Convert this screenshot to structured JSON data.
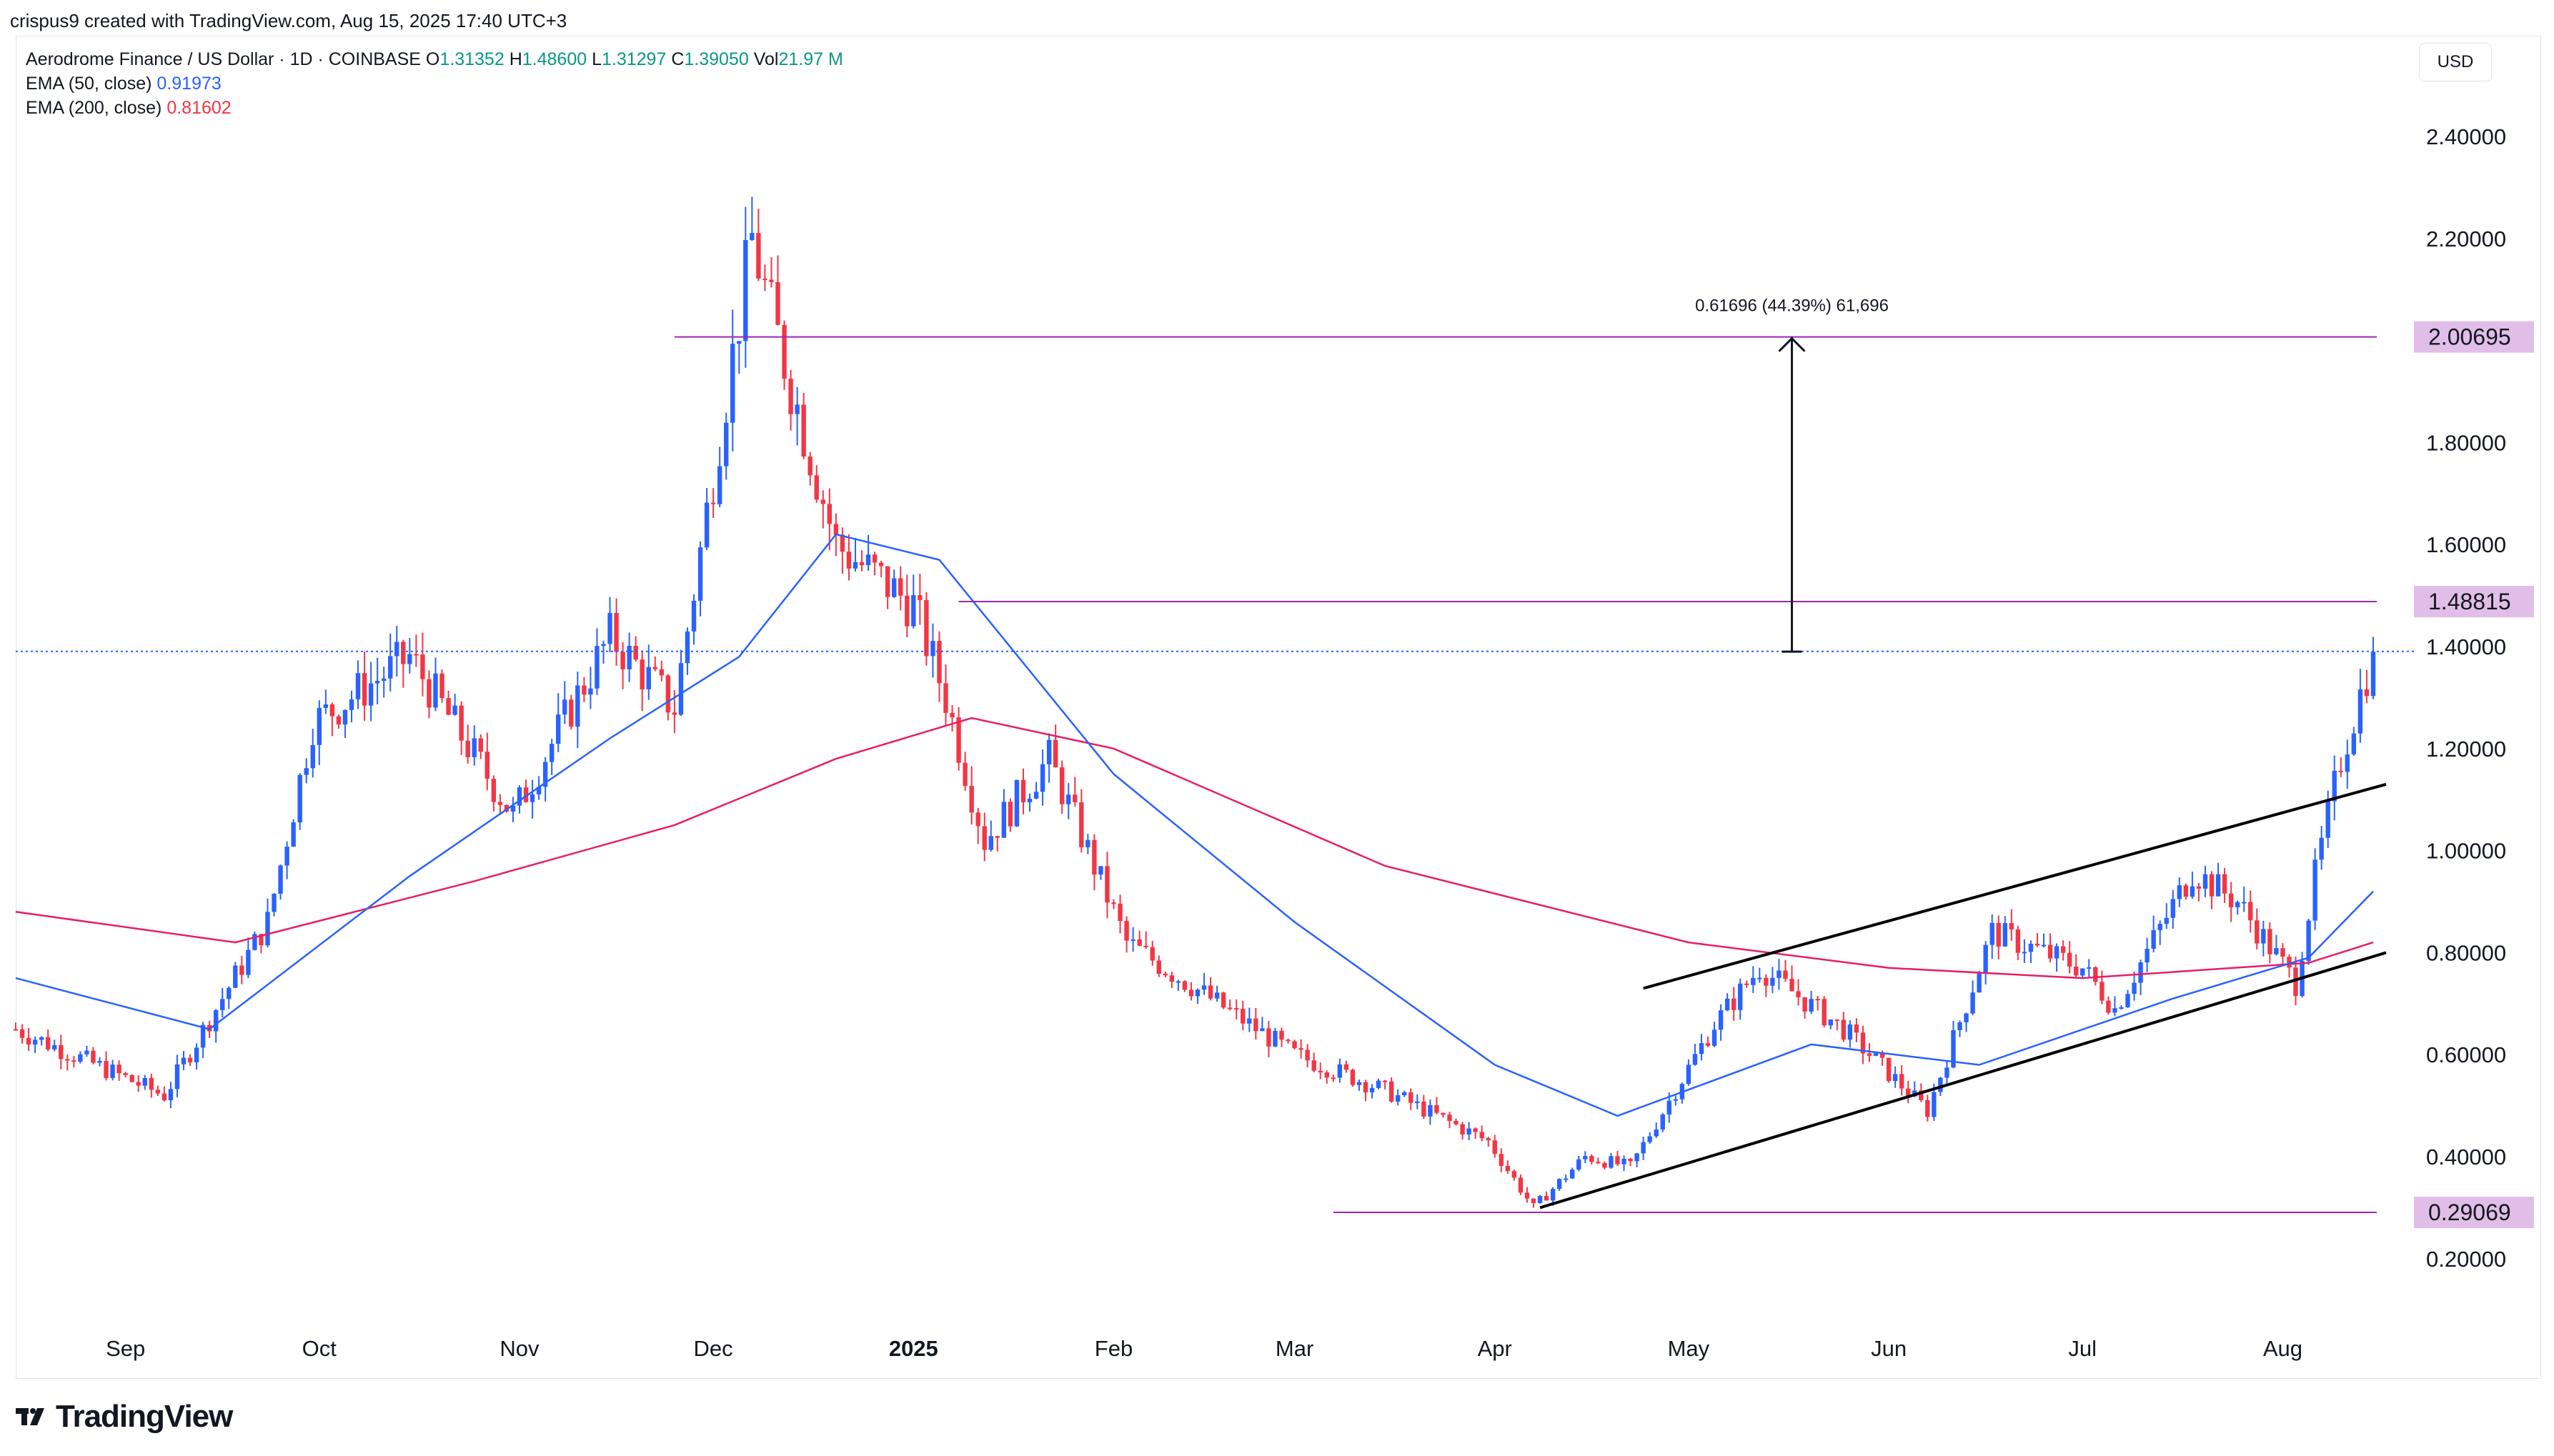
{
  "header": {
    "attribution": "crispus9 created with TradingView.com, Aug 15, 2025 17:40 UTC+3"
  },
  "legend": {
    "symbol": "Aerodrome Finance / US Dollar · 1D · COINBASE",
    "o_label": "O",
    "o_value": "1.31352",
    "h_label": "H",
    "h_value": "1.48600",
    "l_label": "L",
    "l_value": "1.31297",
    "c_label": "C",
    "c_value": "1.39050",
    "vol_label": "Vol",
    "vol_value": "21.97 M",
    "ema50_label": "EMA (50, close)",
    "ema50_value": "0.91973",
    "ema200_label": "EMA (200, close)",
    "ema200_value": "0.81602"
  },
  "currency": "USD",
  "brand": "TradingView",
  "chart_data": {
    "type": "candlestick",
    "y_axis": {
      "ticks": [
        "2.40000",
        "2.20000",
        "1.80000",
        "1.60000",
        "1.40000",
        "1.20000",
        "1.00000",
        "0.80000",
        "0.60000",
        "0.40000",
        "0.20000"
      ],
      "range": [
        0.09,
        2.48
      ]
    },
    "x_axis": {
      "ticks": [
        "Sep",
        "Oct",
        "Nov",
        "Dec",
        "2025",
        "Feb",
        "Mar",
        "Apr",
        "May",
        "Jun",
        "Jul",
        "Aug"
      ]
    },
    "price_tags": [
      "2.00695",
      "1.48815",
      "0.29069"
    ],
    "measure_label": "0.61696 (44.39%) 61,696",
    "key_points": [
      {
        "date": "2024-08-15",
        "price": 0.65
      },
      {
        "date": "2024-09-07",
        "price": 0.52
      },
      {
        "date": "2024-09-23",
        "price": 0.86
      },
      {
        "date": "2024-09-30",
        "price": 1.25
      },
      {
        "date": "2024-10-15",
        "price": 1.38
      },
      {
        "date": "2024-10-31",
        "price": 1.07
      },
      {
        "date": "2024-11-15",
        "price": 1.42
      },
      {
        "date": "2024-11-25",
        "price": 1.28
      },
      {
        "date": "2024-12-07",
        "price": 2.2
      },
      {
        "date": "2024-12-10",
        "price": 2.05
      },
      {
        "date": "2024-12-20",
        "price": 1.6
      },
      {
        "date": "2025-01-01",
        "price": 1.48
      },
      {
        "date": "2025-01-06",
        "price": 1.3
      },
      {
        "date": "2025-01-12",
        "price": 1.02
      },
      {
        "date": "2025-01-22",
        "price": 1.18
      },
      {
        "date": "2025-02-03",
        "price": 0.82
      },
      {
        "date": "2025-03-01",
        "price": 0.6
      },
      {
        "date": "2025-03-15",
        "price": 0.53
      },
      {
        "date": "2025-03-31",
        "price": 0.43
      },
      {
        "date": "2025-04-07",
        "price": 0.3
      },
      {
        "date": "2025-04-15",
        "price": 0.4
      },
      {
        "date": "2025-04-22",
        "price": 0.38
      },
      {
        "date": "2025-05-05",
        "price": 0.66
      },
      {
        "date": "2025-05-12",
        "price": 0.77
      },
      {
        "date": "2025-05-25",
        "price": 0.65
      },
      {
        "date": "2025-06-07",
        "price": 0.49
      },
      {
        "date": "2025-06-17",
        "price": 0.84
      },
      {
        "date": "2025-07-01",
        "price": 0.77
      },
      {
        "date": "2025-07-06",
        "price": 0.69
      },
      {
        "date": "2025-07-18",
        "price": 0.96
      },
      {
        "date": "2025-07-25",
        "price": 0.9
      },
      {
        "date": "2025-08-03",
        "price": 0.74
      },
      {
        "date": "2025-08-06",
        "price": 0.95
      },
      {
        "date": "2025-08-10",
        "price": 1.18
      },
      {
        "date": "2025-08-15",
        "price": 1.39
      }
    ],
    "ema50": [
      {
        "date": "2024-08-15",
        "value": 0.75
      },
      {
        "date": "2024-09-14",
        "value": 0.65
      },
      {
        "date": "2024-10-15",
        "value": 0.95
      },
      {
        "date": "2024-11-15",
        "value": 1.22
      },
      {
        "date": "2024-12-05",
        "value": 1.38
      },
      {
        "date": "2024-12-20",
        "value": 1.62
      },
      {
        "date": "2025-01-05",
        "value": 1.57
      },
      {
        "date": "2025-02-01",
        "value": 1.15
      },
      {
        "date": "2025-03-01",
        "value": 0.86
      },
      {
        "date": "2025-04-01",
        "value": 0.58
      },
      {
        "date": "2025-04-20",
        "value": 0.48
      },
      {
        "date": "2025-05-20",
        "value": 0.62
      },
      {
        "date": "2025-06-15",
        "value": 0.58
      },
      {
        "date": "2025-07-15",
        "value": 0.71
      },
      {
        "date": "2025-08-05",
        "value": 0.79
      },
      {
        "date": "2025-08-15",
        "value": 0.92
      }
    ],
    "ema200": [
      {
        "date": "2024-08-15",
        "value": 0.88
      },
      {
        "date": "2024-09-18",
        "value": 0.82
      },
      {
        "date": "2024-10-25",
        "value": 0.94
      },
      {
        "date": "2024-11-25",
        "value": 1.05
      },
      {
        "date": "2024-12-20",
        "value": 1.18
      },
      {
        "date": "2025-01-10",
        "value": 1.26
      },
      {
        "date": "2025-02-01",
        "value": 1.2
      },
      {
        "date": "2025-03-15",
        "value": 0.97
      },
      {
        "date": "2025-05-01",
        "value": 0.82
      },
      {
        "date": "2025-06-01",
        "value": 0.77
      },
      {
        "date": "2025-07-01",
        "value": 0.75
      },
      {
        "date": "2025-08-05",
        "value": 0.78
      },
      {
        "date": "2025-08-15",
        "value": 0.82
      }
    ],
    "lines": [
      {
        "kind": "horizontal",
        "price": 2.00695,
        "from": "2024-11-25",
        "to": "2025-08-15"
      },
      {
        "kind": "horizontal",
        "price": 1.48815,
        "from": "2025-01-08",
        "to": "2025-08-15"
      },
      {
        "kind": "horizontal",
        "price": 0.29069,
        "from": "2025-03-07",
        "to": "2025-08-15"
      },
      {
        "kind": "dotted",
        "price": 1.3905,
        "from": "2024-08-15",
        "to": "2025-08-15"
      },
      {
        "kind": "trend",
        "from_date": "2025-04-08",
        "from_price": 0.3,
        "to_date": "2025-08-17",
        "to_price": 0.8
      },
      {
        "kind": "trend",
        "from_date": "2025-04-24",
        "from_price": 0.73,
        "to_date": "2025-08-17",
        "to_price": 1.13
      },
      {
        "kind": "arrow",
        "date": "2025-05-17",
        "from_price": 1.39,
        "to_price": 2.00695
      }
    ],
    "colors": {
      "up": "#2962ff",
      "down": "#f23645",
      "ema50": "#2962ff",
      "ema200": "#e91e63",
      "horizontal": "#9c27b0",
      "tag_fill": "#e1bee7",
      "trend": "#000000"
    }
  }
}
